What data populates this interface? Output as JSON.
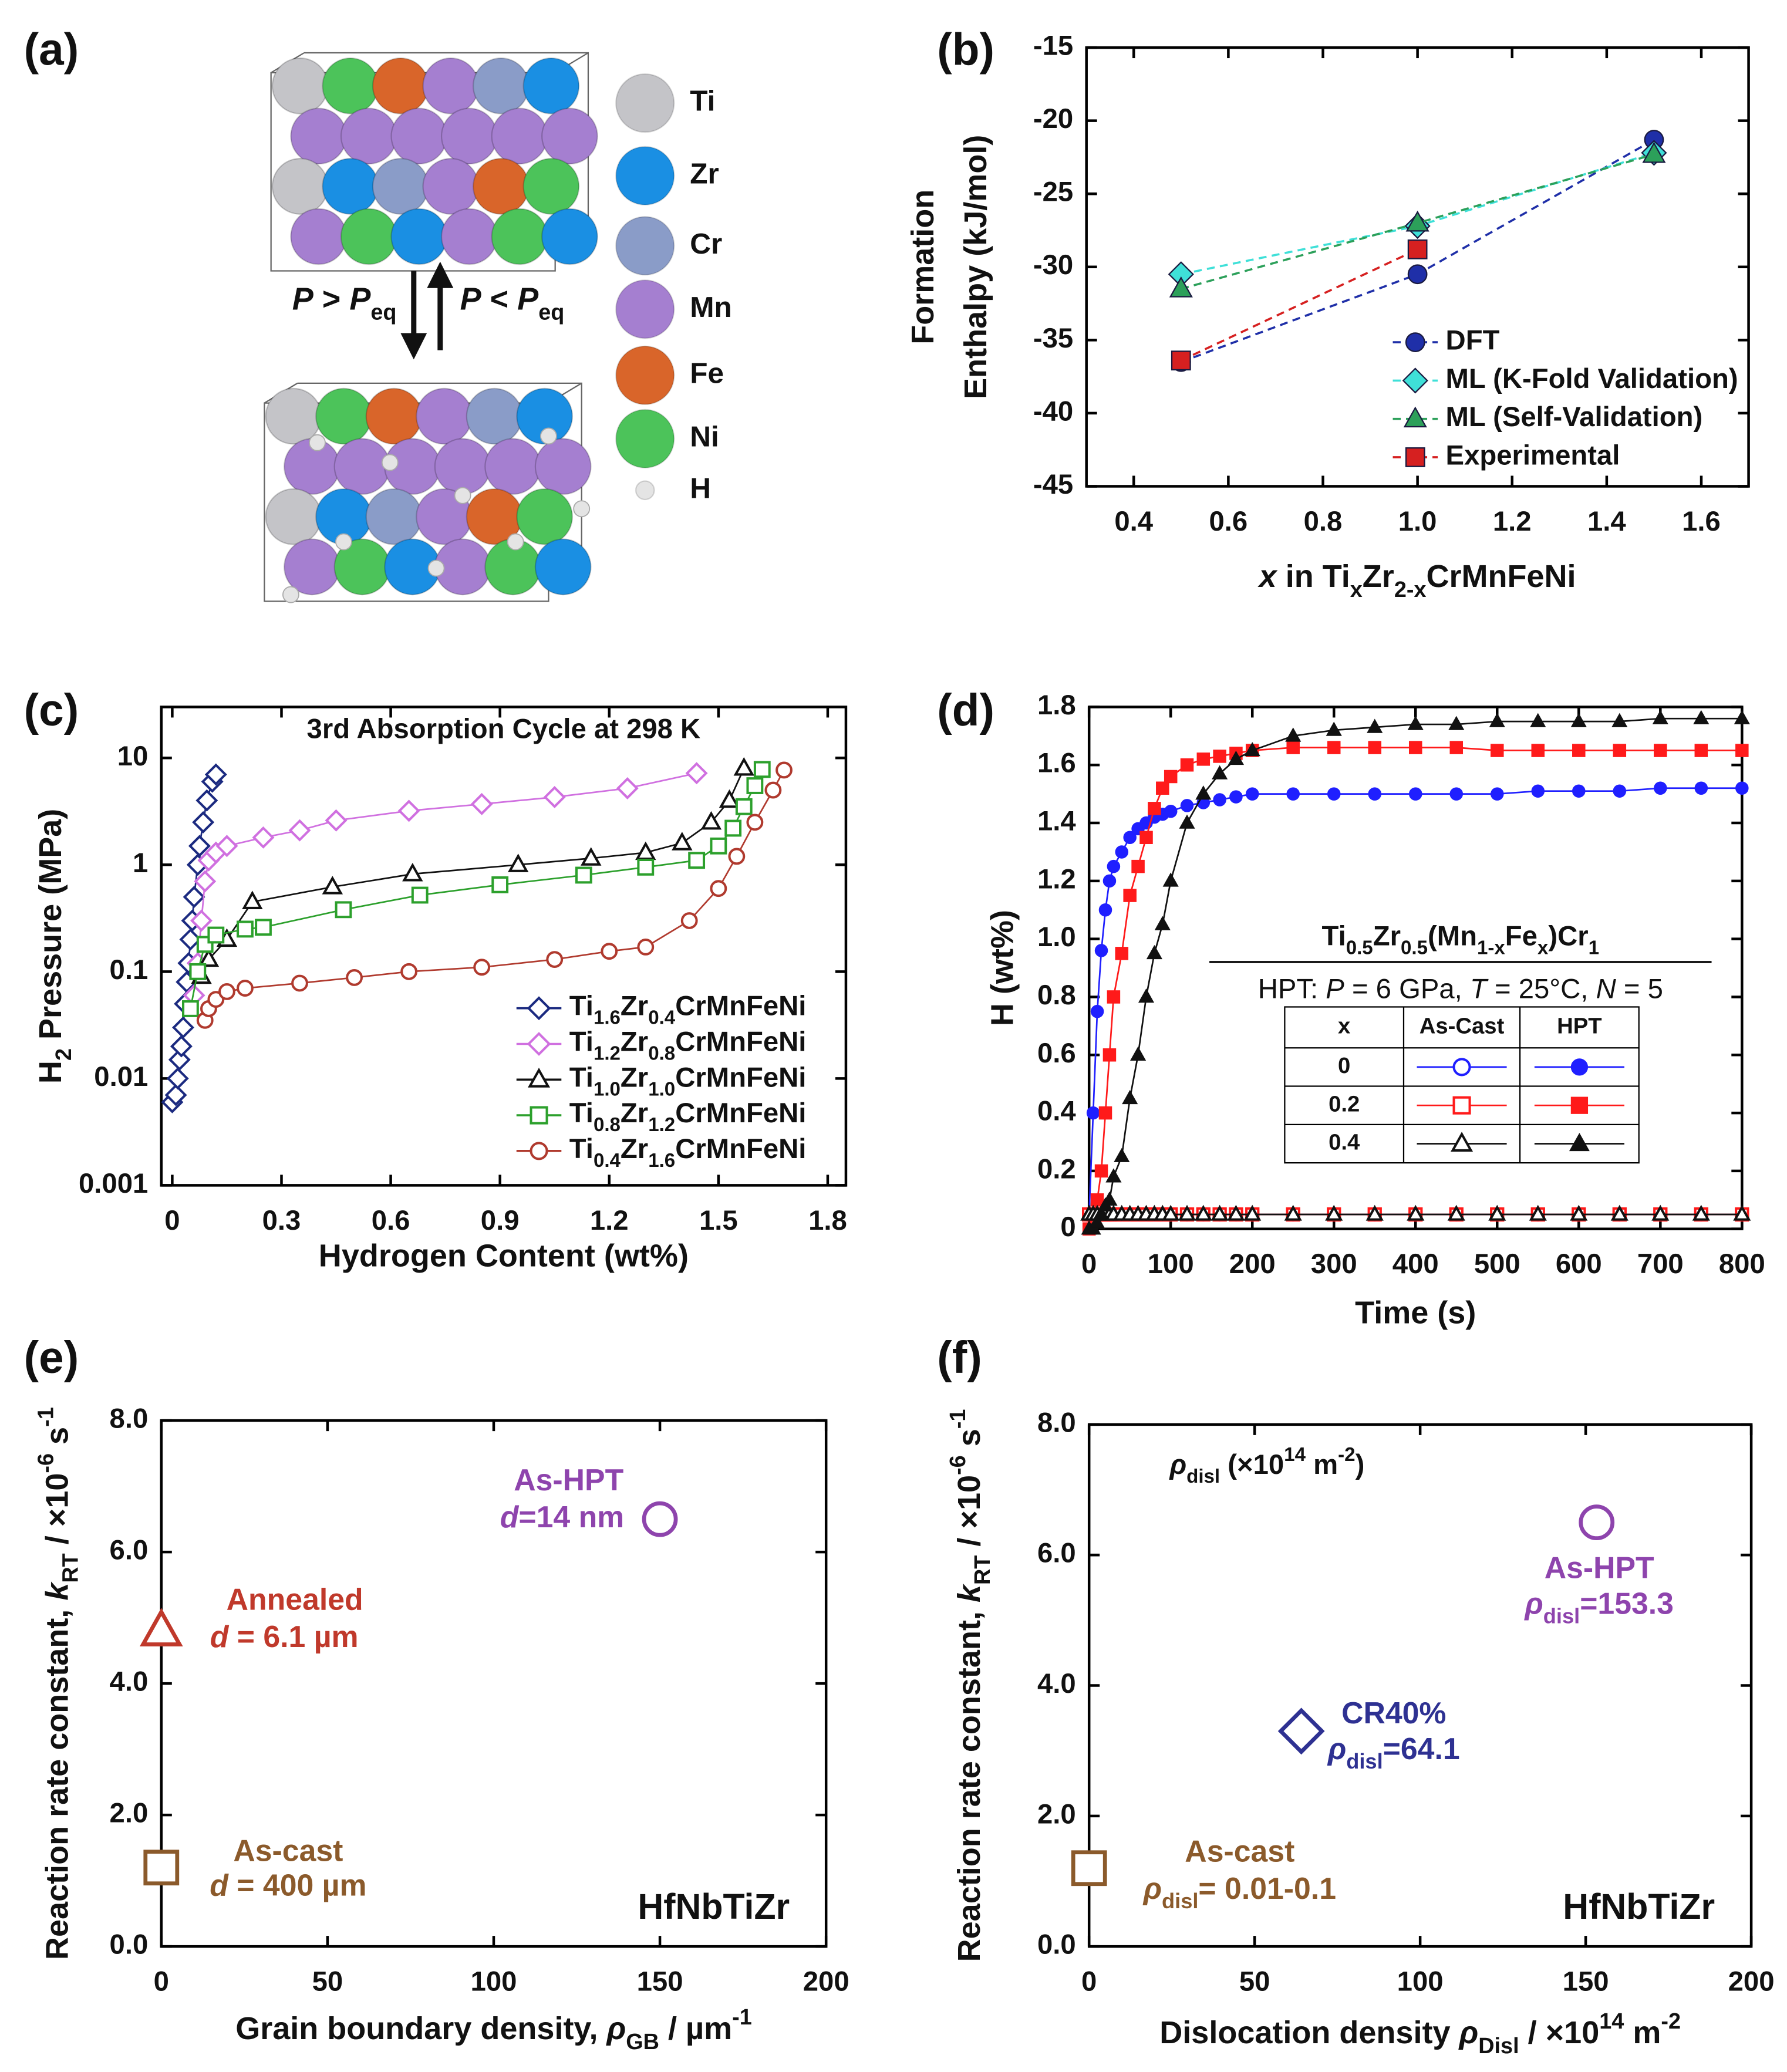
{
  "diagram": {
    "panel": "(a)",
    "legend": [
      {
        "name": "Ti",
        "color": "#c4c4c8"
      },
      {
        "name": "Zr",
        "color": "#1a8fe3"
      },
      {
        "name": "Cr",
        "color": "#8a9cc8"
      },
      {
        "name": "Mn",
        "color": "#a57fd0"
      },
      {
        "name": "Fe",
        "color": "#d9652a"
      },
      {
        "name": "Ni",
        "color": "#4cc35a"
      },
      {
        "name": "H",
        "color": "#e4e4e4"
      }
    ],
    "arrow_labels": [
      [
        {
          "it": "P"
        },
        " > ",
        {
          "it": "P"
        },
        {
          "sub": "eq"
        }
      ],
      [
        {
          "it": "P"
        },
        " < ",
        {
          "it": "P"
        },
        {
          "sub": "eq"
        }
      ]
    ]
  },
  "chart_data": [
    {
      "type": "line",
      "panel": "(b)",
      "line_style": "dashed",
      "legend": "lower right",
      "xlabel": [
        {
          "it": "x"
        },
        " in Ti",
        {
          "sub": "x"
        },
        "Zr",
        {
          "sub": "2-x"
        },
        "CrMnFeNi"
      ],
      "ylabel": [
        [
          "Formation"
        ],
        [
          "Enthalpy (kJ/mol)"
        ]
      ],
      "xlim": [
        0.3,
        1.7
      ],
      "xticks": [
        0.4,
        0.6,
        0.8,
        {
          "value": 1,
          "label": "1.0"
        },
        1.2,
        1.4,
        1.6
      ],
      "ylim": [
        -45,
        -15
      ],
      "yticks": [
        -15,
        -20,
        -25,
        -30,
        -35,
        -40,
        -45
      ],
      "x": [
        0.5,
        1.0,
        1.5
      ],
      "series": [
        {
          "name": "DFT",
          "color": "#1f2fa8",
          "marker": "circle",
          "values": [
            -36.5,
            -30.5,
            -21.3
          ]
        },
        {
          "name": "ML (K-Fold Validation)",
          "color": "#3fe0d8",
          "marker": "diamond",
          "values": [
            -30.5,
            -27.2,
            -22.2
          ]
        },
        {
          "name": "ML (Self-Validation)",
          "color": "#2ca05a",
          "marker": "triangle",
          "values": [
            -31.5,
            -27.0,
            -22.3
          ]
        },
        {
          "name": "Experimental",
          "color": "#d62020",
          "marker": "square",
          "values": [
            -36.4,
            -28.8,
            null
          ]
        }
      ]
    },
    {
      "type": "line",
      "panel": "(c)",
      "yscale": "log",
      "markers": "hollow",
      "legend": "lower right",
      "title": "3rd Absorption Cycle at 298 K",
      "xlabel": "Hydrogen Content (wt%)",
      "ylabel": [
        "H",
        {
          "sub": "2"
        },
        " Pressure (MPa)"
      ],
      "xlim": [
        -0.03,
        1.85
      ],
      "xticks": [
        0,
        0.3,
        0.6,
        0.9,
        1.2,
        1.5,
        1.8
      ],
      "ylim": [
        0.001,
        30
      ],
      "yticks": [
        10,
        1,
        0.1,
        0.01,
        0.001
      ],
      "series": [
        {
          "name": [
            "Ti",
            {
              "sub": "1.6"
            },
            "Zr",
            {
              "sub": "0.4"
            },
            "CrMnFeNi"
          ],
          "color": "#1b2a80",
          "marker": "diamond",
          "x": [
            0,
            0.01,
            0.015,
            0.02,
            0.025,
            0.03,
            0.035,
            0.04,
            0.045,
            0.05,
            0.055,
            0.06,
            0.07,
            0.075,
            0.085,
            0.095,
            0.11,
            0.12
          ],
          "values": [
            0.006,
            0.007,
            0.01,
            0.015,
            0.02,
            0.03,
            0.05,
            0.08,
            0.12,
            0.2,
            0.3,
            0.5,
            1,
            1.5,
            2.5,
            4,
            6,
            7
          ]
        },
        {
          "name": [
            "Ti",
            {
              "sub": "1.2"
            },
            "Zr",
            {
              "sub": "0.8"
            },
            "CrMnFeNi"
          ],
          "color": "#d070e0",
          "marker": "diamond",
          "x": [
            0.06,
            0.07,
            0.08,
            0.09,
            0.1,
            0.12,
            0.15,
            0.25,
            0.35,
            0.45,
            0.65,
            0.85,
            1.05,
            1.25,
            1.44
          ],
          "values": [
            0.06,
            0.12,
            0.3,
            0.7,
            1.1,
            1.3,
            1.5,
            1.8,
            2.1,
            2.6,
            3.2,
            3.7,
            4.3,
            5.2,
            7.2
          ]
        },
        {
          "name": [
            "Ti",
            {
              "sub": "1.0"
            },
            "Zr",
            {
              "sub": "1.0"
            },
            "CrMnFeNi"
          ],
          "color": "#111111",
          "marker": "triangle",
          "x": [
            0.08,
            0.1,
            0.15,
            0.22,
            0.44,
            0.66,
            0.95,
            1.15,
            1.3,
            1.4,
            1.48,
            1.53,
            1.57
          ],
          "values": [
            0.09,
            0.13,
            0.2,
            0.45,
            0.62,
            0.82,
            1,
            1.15,
            1.3,
            1.6,
            2.5,
            4,
            8
          ]
        },
        {
          "name": [
            "Ti",
            {
              "sub": "0.8"
            },
            "Zr",
            {
              "sub": "1.2"
            },
            "CrMnFeNi"
          ],
          "color": "#2ca02c",
          "marker": "square",
          "x": [
            0.05,
            0.07,
            0.09,
            0.12,
            0.2,
            0.25,
            0.47,
            0.68,
            0.9,
            1.13,
            1.3,
            1.44,
            1.5,
            1.54,
            1.57,
            1.6,
            1.62
          ],
          "values": [
            0.045,
            0.1,
            0.18,
            0.22,
            0.25,
            0.26,
            0.38,
            0.52,
            0.65,
            0.8,
            0.95,
            1.1,
            1.5,
            2.2,
            3.5,
            5.5,
            7.8
          ]
        },
        {
          "name": [
            "Ti",
            {
              "sub": "0.4"
            },
            "Zr",
            {
              "sub": "1.6"
            },
            "CrMnFeNi"
          ],
          "color": "#b03a2e",
          "marker": "circle",
          "x": [
            0.09,
            0.1,
            0.12,
            0.15,
            0.2,
            0.35,
            0.5,
            0.65,
            0.85,
            1.05,
            1.2,
            1.3,
            1.42,
            1.5,
            1.55,
            1.6,
            1.65,
            1.68
          ],
          "values": [
            0.035,
            0.045,
            0.055,
            0.065,
            0.07,
            0.078,
            0.088,
            0.1,
            0.11,
            0.13,
            0.155,
            0.17,
            0.3,
            0.6,
            1.2,
            2.5,
            5,
            7.7
          ]
        }
      ]
    },
    {
      "type": "line",
      "panel": "(d)",
      "xlabel": "Time (s)",
      "ylabel": "H (wt%)",
      "xlim": [
        0,
        800
      ],
      "xticks": [
        0,
        100,
        200,
        300,
        400,
        500,
        600,
        700,
        800
      ],
      "ylim": [
        0,
        1.8
      ],
      "yticks": [
        0,
        0.2,
        0.4,
        0.6,
        0.8,
        {
          "value": 1,
          "label": "1.0"
        },
        1.2,
        1.4,
        1.6,
        1.8
      ],
      "annotations": [
        [
          "Ti",
          {
            "sub": "0.5"
          },
          "Zr",
          {
            "sub": "0.5"
          },
          "(Mn",
          {
            "sub": "1-x"
          },
          "Fe",
          {
            "sub": "x"
          },
          ")Cr",
          {
            "sub": "1"
          }
        ],
        [
          "HPT: ",
          {
            "it": "P"
          },
          " = 6 GPa, ",
          {
            "it": "T"
          },
          " = 25°C, ",
          {
            "it": "N"
          },
          " = 5"
        ]
      ],
      "legend_header": [
        "x",
        "As-Cast",
        "HPT"
      ],
      "x": [
        0,
        5,
        10,
        15,
        20,
        25,
        30,
        40,
        50,
        60,
        70,
        80,
        90,
        100,
        120,
        140,
        160,
        180,
        200,
        250,
        300,
        350,
        400,
        450,
        500,
        550,
        600,
        650,
        700,
        750,
        800
      ],
      "series": [
        {
          "name": "0",
          "color": "#1f1fff",
          "marker": "circle",
          "as_cast": [
            0.05,
            0.05,
            0.05,
            0.05,
            0.05,
            0.05,
            0.05,
            0.05,
            0.05,
            0.05,
            0.05,
            0.05,
            0.05,
            0.05,
            0.05,
            0.05,
            0.05,
            0.05,
            0.05,
            0.05,
            0.05,
            0.05,
            0.05,
            0.05,
            0.05,
            0.05,
            0.05,
            0.05,
            0.05,
            0.05,
            0.05
          ],
          "hpt": [
            0.05,
            0.4,
            0.75,
            0.96,
            1.1,
            1.2,
            1.25,
            1.3,
            1.35,
            1.38,
            1.4,
            1.42,
            1.43,
            1.44,
            1.46,
            1.47,
            1.48,
            1.49,
            1.5,
            1.5,
            1.5,
            1.5,
            1.5,
            1.5,
            1.5,
            1.51,
            1.51,
            1.51,
            1.52,
            1.52,
            1.52
          ]
        },
        {
          "name": "0.2",
          "color": "#ff1a1a",
          "marker": "square",
          "as_cast": [
            0.05,
            0.05,
            0.05,
            0.05,
            0.05,
            0.05,
            0.05,
            0.05,
            0.05,
            0.05,
            0.05,
            0.05,
            0.05,
            0.05,
            0.05,
            0.05,
            0.05,
            0.05,
            0.05,
            0.05,
            0.05,
            0.05,
            0.05,
            0.05,
            0.05,
            0.05,
            0.05,
            0.05,
            0.05,
            0.05,
            0.05
          ],
          "hpt": [
            0,
            0.05,
            0.1,
            0.2,
            0.4,
            0.6,
            0.8,
            0.95,
            1.15,
            1.25,
            1.35,
            1.45,
            1.52,
            1.56,
            1.6,
            1.62,
            1.63,
            1.64,
            1.65,
            1.66,
            1.66,
            1.66,
            1.66,
            1.66,
            1.65,
            1.65,
            1.65,
            1.65,
            1.65,
            1.65,
            1.65
          ]
        },
        {
          "name": "0.4",
          "color": "#111111",
          "marker": "triangle",
          "as_cast": [
            0.05,
            0.05,
            0.05,
            0.05,
            0.05,
            0.05,
            0.05,
            0.05,
            0.05,
            0.05,
            0.05,
            0.05,
            0.05,
            0.05,
            0.05,
            0.05,
            0.05,
            0.05,
            0.05,
            0.05,
            0.05,
            0.05,
            0.05,
            0.05,
            0.05,
            0.05,
            0.05,
            0.05,
            0.05,
            0.05,
            0.05
          ],
          "hpt": [
            0,
            0,
            0.02,
            0.05,
            0.08,
            0.1,
            0.18,
            0.25,
            0.45,
            0.6,
            0.8,
            0.95,
            1.05,
            1.2,
            1.4,
            1.5,
            1.57,
            1.62,
            1.65,
            1.7,
            1.72,
            1.73,
            1.74,
            1.74,
            1.75,
            1.75,
            1.75,
            1.75,
            1.76,
            1.76,
            1.76
          ]
        }
      ]
    },
    {
      "type": "scatter",
      "panel": "(e)",
      "xlabel": [
        "Grain boundary density, ",
        {
          "it": "ρ"
        },
        {
          "sub": "GB"
        },
        " / µm",
        {
          "sup": "-1"
        }
      ],
      "ylabel": [
        "Reaction rate constant, ",
        {
          "it": "k"
        },
        {
          "sub": "RT"
        },
        " / ×10",
        {
          "sup": "-6"
        },
        " s",
        {
          "sup": "-1"
        }
      ],
      "xlim": [
        0,
        200
      ],
      "xticks": [
        0,
        50,
        100,
        150,
        200
      ],
      "ylim": [
        0,
        8
      ],
      "yticks": [
        {
          "value": 0,
          "label": "0.0"
        },
        {
          "value": 2,
          "label": "2.0"
        },
        {
          "value": 4,
          "label": "4.0"
        },
        {
          "value": 6,
          "label": "6.0"
        },
        {
          "value": 8,
          "label": "8.0"
        }
      ],
      "annotations": [
        "HfNbTiZr"
      ],
      "series": [
        {
          "name": "As-cast",
          "note": [
            {
              "it": "d"
            },
            " = 400 µm"
          ],
          "color": "#8b5a2b",
          "marker": "square",
          "x": [
            0
          ],
          "values": [
            1.2
          ]
        },
        {
          "name": "Annealed",
          "note": [
            {
              "it": "d"
            },
            " = 6.1 µm"
          ],
          "color": "#c0392b",
          "marker": "triangle",
          "x": [
            0
          ],
          "values": [
            4.8
          ]
        },
        {
          "name": "As-HPT",
          "note": [
            {
              "it": "d"
            },
            "=14 nm"
          ],
          "color": "#8e44ad",
          "marker": "circle",
          "x": [
            150
          ],
          "values": [
            6.5
          ]
        }
      ]
    },
    {
      "type": "scatter",
      "panel": "(f)",
      "xlabel": [
        "Dislocation density ",
        {
          "it": "ρ"
        },
        {
          "sub": "Disl"
        },
        " / ×10",
        {
          "sup": "14"
        },
        " m",
        {
          "sup": "-2"
        }
      ],
      "ylabel": [
        "Reaction rate constant, ",
        {
          "it": "k"
        },
        {
          "sub": "RT"
        },
        " / ×10",
        {
          "sup": "-6"
        },
        " s",
        {
          "sup": "-1"
        }
      ],
      "xlim": [
        0,
        200
      ],
      "xticks": [
        0,
        50,
        100,
        150,
        200
      ],
      "ylim": [
        0,
        8
      ],
      "yticks": [
        {
          "value": 0,
          "label": "0.0"
        },
        {
          "value": 2,
          "label": "2.0"
        },
        {
          "value": 4,
          "label": "4.0"
        },
        {
          "value": 6,
          "label": "6.0"
        },
        {
          "value": 8,
          "label": "8.0"
        }
      ],
      "annotations": [
        [
          {
            "it": "ρ"
          },
          {
            "sub": "disl"
          },
          " (×10",
          {
            "sup": "14"
          },
          " m",
          {
            "sup": "-2"
          },
          ")"
        ],
        "HfNbTiZr"
      ],
      "series": [
        {
          "name": "As-cast",
          "note": [
            {
              "it": "ρ"
            },
            {
              "sub": "disl"
            },
            "= 0.01-0.1"
          ],
          "color": "#8b5a2b",
          "marker": "square",
          "x": [
            0
          ],
          "values": [
            1.2
          ]
        },
        {
          "name": "CR40%",
          "note": [
            {
              "it": "ρ"
            },
            {
              "sub": "disl"
            },
            "=64.1"
          ],
          "color": "#2e3192",
          "marker": "diamond",
          "x": [
            64.1
          ],
          "values": [
            3.3
          ]
        },
        {
          "name": "As-HPT",
          "note": [
            {
              "it": "ρ"
            },
            {
              "sub": "disl"
            },
            "=153.3"
          ],
          "color": "#8e44ad",
          "marker": "circle",
          "x": [
            153.3
          ],
          "values": [
            6.5
          ]
        }
      ]
    }
  ]
}
